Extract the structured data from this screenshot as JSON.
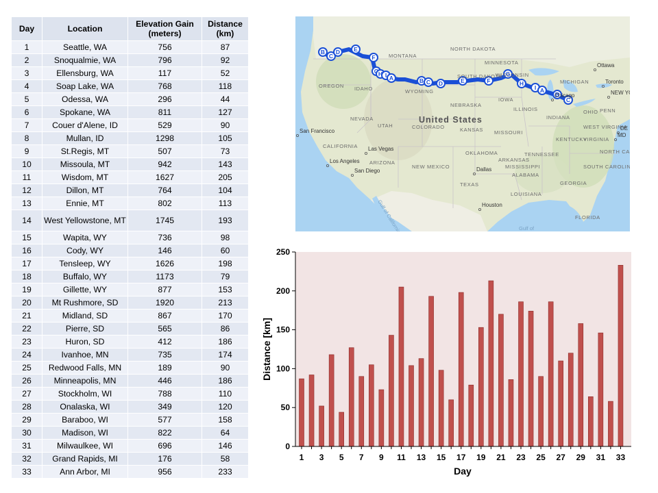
{
  "table": {
    "headers": {
      "day": "Day",
      "location": "Location",
      "elevation_1": "Elevation Gain",
      "elevation_2": "(meters)",
      "distance_1": "Distance",
      "distance_2": "(km)"
    },
    "rows": [
      {
        "day": "1",
        "location": "Seattle, WA",
        "elevation": "756",
        "distance": "87"
      },
      {
        "day": "2",
        "location": "Snoqualmie, WA",
        "elevation": "796",
        "distance": "92"
      },
      {
        "day": "3",
        "location": "Ellensburg, WA",
        "elevation": "117",
        "distance": "52"
      },
      {
        "day": "4",
        "location": "Soap Lake, WA",
        "elevation": "768",
        "distance": "118"
      },
      {
        "day": "5",
        "location": "Odessa, WA",
        "elevation": "296",
        "distance": "44"
      },
      {
        "day": "6",
        "location": "Spokane, WA",
        "elevation": "811",
        "distance": "127"
      },
      {
        "day": "7",
        "location": "Couer d'Alene, ID",
        "elevation": "529",
        "distance": "90"
      },
      {
        "day": "8",
        "location": "Mullan, ID",
        "elevation": "1298",
        "distance": "105"
      },
      {
        "day": "9",
        "location": "St.Regis, MT",
        "elevation": "507",
        "distance": "73"
      },
      {
        "day": "10",
        "location": "Missoula, MT",
        "elevation": "942",
        "distance": "143"
      },
      {
        "day": "11",
        "location": "Wisdom, MT",
        "elevation": "1627",
        "distance": "205"
      },
      {
        "day": "12",
        "location": "Dillon, MT",
        "elevation": "764",
        "distance": "104"
      },
      {
        "day": "13",
        "location": "Ennie, MT",
        "elevation": "802",
        "distance": "113"
      },
      {
        "day": "14",
        "location": "West Yellowstone, MT",
        "elevation": "1745",
        "distance": "193"
      },
      {
        "day": "15",
        "location": "Wapita, WY",
        "elevation": "736",
        "distance": "98"
      },
      {
        "day": "16",
        "location": "Cody, WY",
        "elevation": "146",
        "distance": "60"
      },
      {
        "day": "17",
        "location": "Tensleep, WY",
        "elevation": "1626",
        "distance": "198"
      },
      {
        "day": "18",
        "location": "Buffalo, WY",
        "elevation": "1173",
        "distance": "79"
      },
      {
        "day": "19",
        "location": "Gillette, WY",
        "elevation": "877",
        "distance": "153"
      },
      {
        "day": "20",
        "location": "Mt Rushmore, SD",
        "elevation": "1920",
        "distance": "213"
      },
      {
        "day": "21",
        "location": "Midland, SD",
        "elevation": "867",
        "distance": "170"
      },
      {
        "day": "22",
        "location": "Pierre, SD",
        "elevation": "565",
        "distance": "86"
      },
      {
        "day": "23",
        "location": "Huron, SD",
        "elevation": "412",
        "distance": "186"
      },
      {
        "day": "24",
        "location": "Ivanhoe, MN",
        "elevation": "735",
        "distance": "174"
      },
      {
        "day": "25",
        "location": "Redwood Falls, MN",
        "elevation": "189",
        "distance": "90"
      },
      {
        "day": "26",
        "location": "Minneapolis, MN",
        "elevation": "446",
        "distance": "186"
      },
      {
        "day": "27",
        "location": "Stockholm, WI",
        "elevation": "788",
        "distance": "110"
      },
      {
        "day": "28",
        "location": "Onalaska, WI",
        "elevation": "349",
        "distance": "120"
      },
      {
        "day": "29",
        "location": "Baraboo, WI",
        "elevation": "577",
        "distance": "158"
      },
      {
        "day": "30",
        "location": "Madison, WI",
        "elevation": "822",
        "distance": "64"
      },
      {
        "day": "31",
        "location": "Milwaulkee, WI",
        "elevation": "696",
        "distance": "146"
      },
      {
        "day": "32",
        "location": "Grand Rapids, MI",
        "elevation": "176",
        "distance": "58"
      },
      {
        "day": "33",
        "location": "Ann Arbor, MI",
        "elevation": "956",
        "distance": "233"
      }
    ]
  },
  "map": {
    "region_labels": [
      "NORTH DAKOTA",
      "MONTANA",
      "MINNESOTA",
      "OREGON",
      "IDAHO",
      "SOUTH DAKOTA",
      "WYOMING",
      "WISCONSIN",
      "MICHIGAN",
      "NEBRASKA",
      "IOWA",
      "ILLINOIS",
      "OHIO",
      "PENN",
      "NEVADA",
      "UTAH",
      "COLORADO",
      "KANSAS",
      "MISSOURI",
      "INDIANA",
      "WEST VIRGINIA",
      "KENTUCKY",
      "VIRGINIA",
      "CALIFORNIA",
      "OKLAHOMA",
      "TENNESSEE",
      "NORTH CAROLINA",
      "ARIZONA",
      "NEW MEXICO",
      "ARKANSAS",
      "SOUTH CAROLINA",
      "MISSISSIPPI",
      "ALABAMA",
      "GEORGIA",
      "TEXAS",
      "LOUISIANA",
      "FLORIDA"
    ],
    "country_label": "United States",
    "cities": [
      "Ottawa",
      "Toronto",
      "NEW YOR",
      "Chicago",
      "San Francisco",
      "Las Vegas",
      "Los Angeles",
      "San Diego",
      "Dallas",
      "Houston",
      "MD",
      "DE"
    ],
    "water_labels": [
      "Gulf of California",
      "Gulf of"
    ],
    "route_color": "#1a4fd6",
    "route_markers": [
      "B",
      "C",
      "D",
      "E",
      "F",
      "G",
      "H",
      "I",
      "A",
      "B",
      "C",
      "D",
      "E",
      "F",
      "G",
      "H",
      "I",
      "A",
      "B",
      "C"
    ]
  },
  "chart_data": {
    "type": "bar",
    "categories": [
      1,
      2,
      3,
      4,
      5,
      6,
      7,
      8,
      9,
      10,
      11,
      12,
      13,
      14,
      15,
      16,
      17,
      18,
      19,
      20,
      21,
      22,
      23,
      24,
      25,
      26,
      27,
      28,
      29,
      30,
      31,
      32,
      33
    ],
    "values": [
      87,
      92,
      52,
      118,
      44,
      127,
      90,
      105,
      73,
      143,
      205,
      104,
      113,
      193,
      98,
      60,
      198,
      79,
      153,
      213,
      170,
      86,
      186,
      174,
      90,
      186,
      110,
      120,
      158,
      64,
      146,
      58,
      233
    ],
    "xlabel": "Day",
    "ylabel": "Distance [km]",
    "ylim": [
      0,
      250
    ],
    "yticks": [
      0,
      50,
      100,
      150,
      200,
      250
    ],
    "xticks": [
      1,
      3,
      5,
      7,
      9,
      11,
      13,
      15,
      17,
      19,
      21,
      23,
      25,
      27,
      29,
      31,
      33
    ],
    "grid": false,
    "bar_color": "#c0504d",
    "bar_edge": "#8b2d2a",
    "plot_background": "#f2e4e4"
  }
}
